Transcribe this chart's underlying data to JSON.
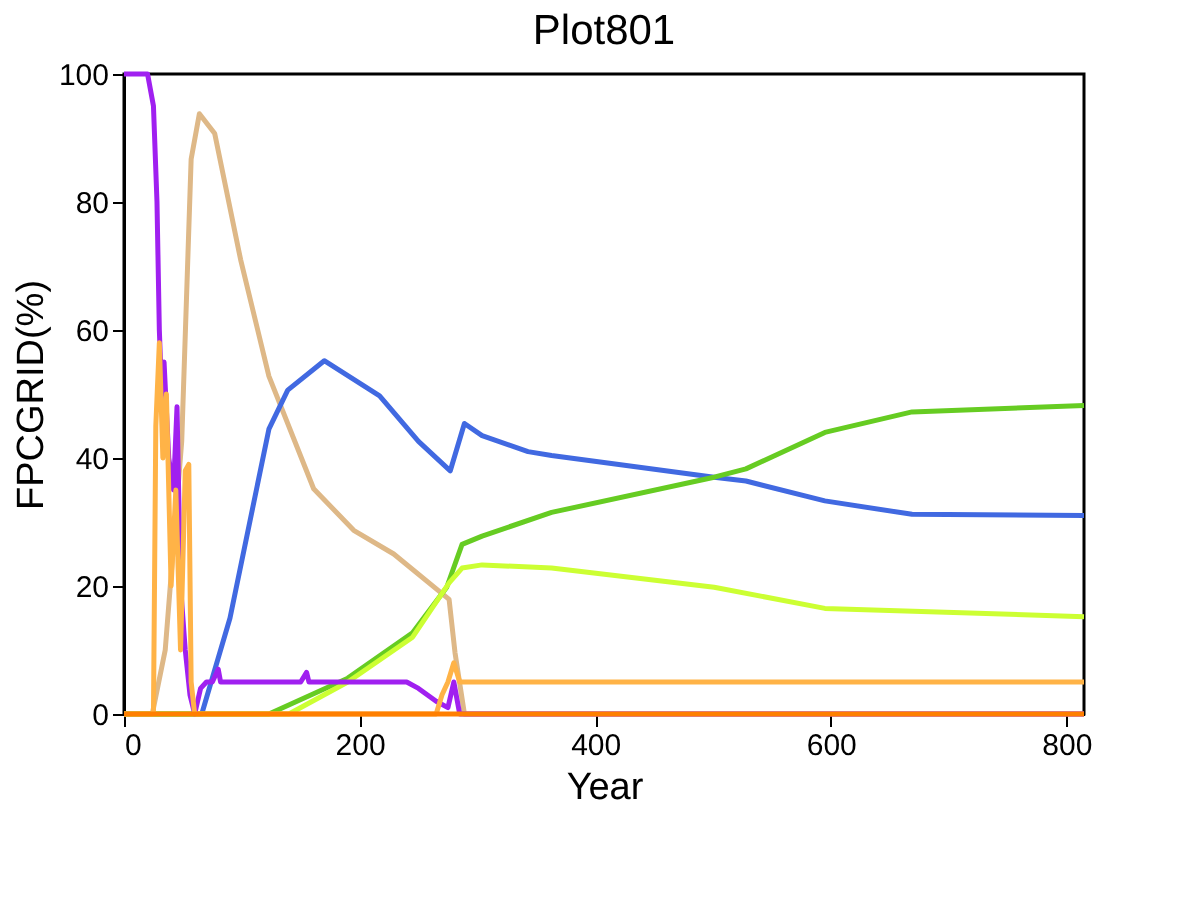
{
  "chart_data": {
    "type": "line",
    "title": "Plot801",
    "xlabel": "Year",
    "ylabel": "FPCGRID(%)",
    "xlim": [
      0,
      815
    ],
    "ylim": [
      0,
      100
    ],
    "xticks": [
      0,
      200,
      400,
      600,
      800
    ],
    "yticks": [
      0,
      20,
      40,
      60,
      80,
      100
    ],
    "grid": false,
    "legend": false,
    "marker": "none",
    "line_style": "solid",
    "series": [
      {
        "color": "#deb887",
        "x": [
          0,
          24,
          35,
          49,
          57,
          64,
          77,
          99,
          123,
          161,
          195,
          229,
          276,
          281,
          289,
          815
        ],
        "values": [
          0,
          0,
          10,
          42.6,
          86.7,
          93.8,
          90.7,
          71,
          52.8,
          35.2,
          28.7,
          25,
          17.9,
          9.6,
          0,
          0
        ]
      },
      {
        "color": "#4169e1",
        "x": [
          0,
          66,
          90,
          123,
          139,
          170,
          217,
          250,
          277,
          289,
          304,
          343,
          363,
          501,
          528,
          595,
          669,
          815
        ],
        "values": [
          0,
          0,
          15,
          44.5,
          50.6,
          55.2,
          49.7,
          42.6,
          38,
          45.4,
          43.5,
          41,
          40.4,
          37,
          36.4,
          33.3,
          31.2,
          31
        ]
      },
      {
        "color": "#66cc22",
        "x": [
          0,
          123,
          190,
          245,
          274,
          287,
          304,
          363,
          501,
          528,
          595,
          669,
          815
        ],
        "values": [
          0,
          0,
          5.6,
          12.7,
          19.8,
          26.5,
          27.8,
          31.5,
          37,
          38.3,
          44,
          47.2,
          48.2
        ]
      },
      {
        "color": "#ccff33",
        "x": [
          0,
          140,
          190,
          245,
          276,
          287,
          304,
          363,
          501,
          595,
          815
        ],
        "values": [
          0,
          0,
          5,
          12,
          20.5,
          22.8,
          23.3,
          22.8,
          19.8,
          16.5,
          15.2
        ]
      },
      {
        "color": "#a020f0",
        "x": [
          0,
          20,
          25,
          28,
          30,
          32,
          34,
          38,
          42,
          45,
          48,
          52,
          56,
          60,
          65,
          70,
          75,
          80,
          82,
          150,
          155,
          157,
          240,
          250,
          265,
          275,
          280,
          285,
          815
        ],
        "values": [
          100,
          100,
          95,
          80,
          60,
          50,
          55,
          40,
          35,
          48,
          20,
          10,
          3,
          0,
          4,
          5,
          5,
          7,
          5,
          5,
          6.5,
          5,
          5,
          4,
          2,
          1,
          5,
          0,
          0
        ]
      },
      {
        "color": "#ffb347",
        "x": [
          0,
          25,
          27,
          30,
          33,
          36,
          40,
          44,
          48,
          52,
          55,
          57,
          60,
          265,
          270,
          275,
          280,
          285,
          815
        ],
        "values": [
          0,
          0,
          45,
          58,
          40,
          50,
          20,
          35,
          10,
          38,
          39,
          5,
          0,
          0,
          3,
          5,
          8,
          5,
          5
        ]
      },
      {
        "color": "#ff7f00",
        "x": [
          0,
          815
        ],
        "values": [
          0,
          0
        ]
      }
    ]
  }
}
